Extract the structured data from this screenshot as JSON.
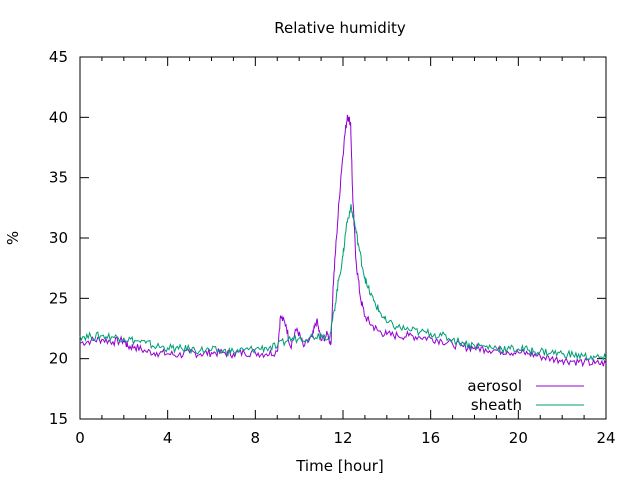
{
  "chart_data": {
    "type": "line",
    "title": "Relative humidity",
    "xlabel": "Time [hour]",
    "ylabel": "%",
    "xlim": [
      0,
      24
    ],
    "ylim": [
      15,
      45
    ],
    "xticks": [
      0,
      4,
      8,
      12,
      16,
      20,
      24
    ],
    "yticks": [
      15,
      20,
      25,
      30,
      35,
      40,
      45
    ],
    "grid": false,
    "legend": "bottom-right",
    "series": [
      {
        "name": "aerosol",
        "color": "#9400d3",
        "points": [
          [
            0,
            21.3
          ],
          [
            0.5,
            21.5
          ],
          [
            1,
            21.6
          ],
          [
            1.5,
            21.4
          ],
          [
            2,
            21.5
          ],
          [
            2.2,
            21.0
          ],
          [
            2.5,
            21.0
          ],
          [
            3,
            20.6
          ],
          [
            3.5,
            20.5
          ],
          [
            4,
            20.4
          ],
          [
            4.5,
            20.3
          ],
          [
            5,
            20.5
          ],
          [
            5.5,
            20.4
          ],
          [
            6,
            20.5
          ],
          [
            6.5,
            20.5
          ],
          [
            7,
            20.4
          ],
          [
            7.5,
            20.5
          ],
          [
            8,
            20.5
          ],
          [
            8.5,
            20.4
          ],
          [
            9.0,
            20.6
          ],
          [
            9.15,
            23.5
          ],
          [
            9.4,
            22.8
          ],
          [
            9.6,
            21.0
          ],
          [
            9.9,
            22.5
          ],
          [
            10.2,
            21.0
          ],
          [
            10.6,
            21.8
          ],
          [
            10.8,
            23.2
          ],
          [
            11.0,
            21.5
          ],
          [
            11.3,
            22.0
          ],
          [
            11.45,
            21.2
          ],
          [
            11.55,
            26.0
          ],
          [
            11.7,
            30.0
          ],
          [
            11.9,
            35.0
          ],
          [
            12.05,
            38.0
          ],
          [
            12.2,
            40.2
          ],
          [
            12.35,
            39.5
          ],
          [
            12.45,
            33.0
          ],
          [
            12.6,
            28.0
          ],
          [
            12.8,
            25.0
          ],
          [
            13.0,
            23.5
          ],
          [
            13.3,
            22.8
          ],
          [
            13.6,
            22.3
          ],
          [
            14,
            22.0
          ],
          [
            14.5,
            21.9
          ],
          [
            15,
            21.9
          ],
          [
            15.5,
            21.8
          ],
          [
            16,
            21.7
          ],
          [
            16.5,
            21.5
          ],
          [
            17,
            21.2
          ],
          [
            17.5,
            21.0
          ],
          [
            18,
            20.9
          ],
          [
            18.5,
            20.8
          ],
          [
            19,
            20.7
          ],
          [
            19.5,
            20.6
          ],
          [
            20,
            20.5
          ],
          [
            20.5,
            20.4
          ],
          [
            21,
            20.2
          ],
          [
            21.5,
            20.0
          ],
          [
            22,
            19.9
          ],
          [
            22.5,
            19.8
          ],
          [
            23,
            19.7
          ],
          [
            23.5,
            19.6
          ],
          [
            24,
            19.6
          ]
        ]
      },
      {
        "name": "sheath",
        "color": "#009e73",
        "points": [
          [
            0,
            21.9
          ],
          [
            0.5,
            21.8
          ],
          [
            1,
            21.9
          ],
          [
            1.5,
            21.8
          ],
          [
            2,
            21.7
          ],
          [
            2.5,
            21.5
          ],
          [
            3,
            21.3
          ],
          [
            3.5,
            21.0
          ],
          [
            4,
            20.9
          ],
          [
            4.5,
            20.8
          ],
          [
            5,
            20.8
          ],
          [
            5.5,
            20.7
          ],
          [
            6,
            20.7
          ],
          [
            6.5,
            20.6
          ],
          [
            7,
            20.6
          ],
          [
            7.5,
            20.7
          ],
          [
            8,
            20.8
          ],
          [
            8.5,
            20.9
          ],
          [
            9,
            21.0
          ],
          [
            9.5,
            21.6
          ],
          [
            10,
            21.7
          ],
          [
            10.5,
            21.8
          ],
          [
            11,
            22.0
          ],
          [
            11.4,
            21.8
          ],
          [
            11.6,
            24.0
          ],
          [
            11.8,
            26.5
          ],
          [
            12.0,
            28.5
          ],
          [
            12.15,
            31.0
          ],
          [
            12.35,
            32.6
          ],
          [
            12.5,
            31.5
          ],
          [
            12.7,
            29.5
          ],
          [
            12.9,
            27.5
          ],
          [
            13.1,
            26.0
          ],
          [
            13.4,
            24.8
          ],
          [
            13.7,
            23.8
          ],
          [
            14,
            23.0
          ],
          [
            14.5,
            22.6
          ],
          [
            15,
            22.4
          ],
          [
            15.5,
            22.2
          ],
          [
            16,
            22.1
          ],
          [
            16.5,
            21.9
          ],
          [
            17,
            21.6
          ],
          [
            17.5,
            21.3
          ],
          [
            18,
            21.1
          ],
          [
            18.5,
            21.0
          ],
          [
            19,
            20.9
          ],
          [
            19.5,
            20.8
          ],
          [
            20,
            20.8
          ],
          [
            20.5,
            20.7
          ],
          [
            21,
            20.6
          ],
          [
            21.5,
            20.5
          ],
          [
            22,
            20.4
          ],
          [
            22.5,
            20.3
          ],
          [
            23,
            20.2
          ],
          [
            23.5,
            20.1
          ],
          [
            24,
            20.0
          ]
        ]
      }
    ]
  }
}
